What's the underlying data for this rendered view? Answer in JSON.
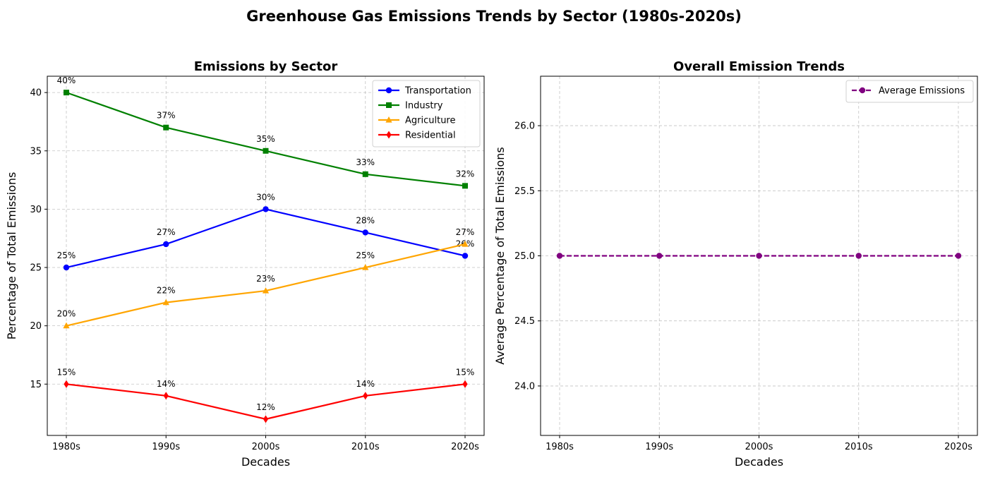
{
  "figure": {
    "suptitle": "Greenhouse Gas Emissions Trends by Sector (1980s-2020s)"
  },
  "chart_data": [
    {
      "type": "line",
      "title": "Emissions by Sector",
      "xlabel": "Decades",
      "ylabel": "Percentage of Total Emissions",
      "categories": [
        "1980s",
        "1990s",
        "2000s",
        "2010s",
        "2020s"
      ],
      "ylim": [
        10.6,
        41.4
      ],
      "yticks": [
        15,
        20,
        25,
        30,
        35,
        40
      ],
      "grid": true,
      "legend_position": "upper right",
      "series": [
        {
          "name": "Transportation",
          "values": [
            25,
            27,
            30,
            28,
            26
          ],
          "color": "#0000ff",
          "marker": "circle",
          "data_labels": [
            "25%",
            "27%",
            "30%",
            "28%",
            "26%"
          ]
        },
        {
          "name": "Industry",
          "values": [
            40,
            37,
            35,
            33,
            32
          ],
          "color": "#008000",
          "marker": "square",
          "data_labels": [
            "40%",
            "37%",
            "35%",
            "33%",
            "32%"
          ]
        },
        {
          "name": "Agriculture",
          "values": [
            20,
            22,
            23,
            25,
            27
          ],
          "color": "#ffa500",
          "marker": "triangle",
          "data_labels": [
            "20%",
            "22%",
            "23%",
            "25%",
            "27%"
          ]
        },
        {
          "name": "Residential",
          "values": [
            15,
            14,
            12,
            14,
            15
          ],
          "color": "#ff0000",
          "marker": "diamond",
          "data_labels": [
            "15%",
            "14%",
            "12%",
            "14%",
            "15%"
          ]
        }
      ]
    },
    {
      "type": "line",
      "title": "Overall Emission Trends",
      "xlabel": "Decades",
      "ylabel": "Average Percentage of Total Emissions",
      "categories": [
        "1980s",
        "1990s",
        "2000s",
        "2010s",
        "2020s"
      ],
      "ylim": [
        23.62,
        26.38
      ],
      "yticks": [
        24.0,
        24.5,
        25.0,
        25.5,
        26.0
      ],
      "ytick_labels": [
        "24.0",
        "24.5",
        "25.0",
        "25.5",
        "26.0"
      ],
      "grid": true,
      "legend_position": "upper right",
      "series": [
        {
          "name": "Average Emissions",
          "values": [
            25,
            25,
            25,
            25,
            25
          ],
          "color": "#800080",
          "marker": "circle",
          "linestyle": "dashed"
        }
      ]
    }
  ]
}
